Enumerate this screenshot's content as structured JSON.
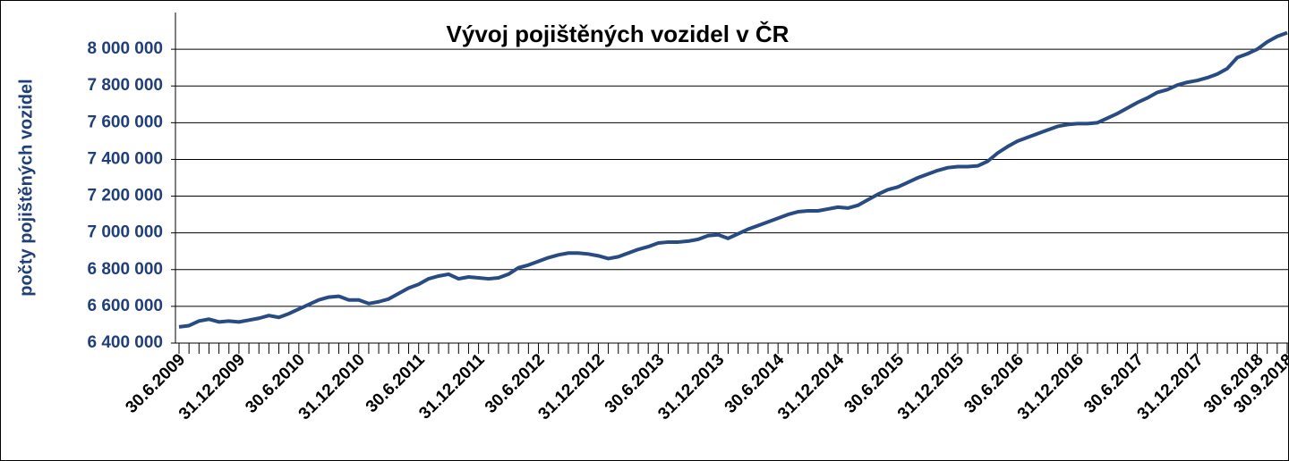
{
  "chart_data": {
    "type": "line",
    "title": "Vývoj pojištěných vozidel v ČR",
    "y_label": "počty pojištěných vozidel",
    "categories": [
      "30.6.2009",
      null,
      null,
      null,
      null,
      null,
      "31.12.2009",
      null,
      null,
      null,
      null,
      null,
      "30.6.2010",
      null,
      null,
      null,
      null,
      null,
      "31.12.2010",
      null,
      null,
      null,
      null,
      null,
      "30.6.2011",
      null,
      null,
      null,
      null,
      null,
      "31.12.2011",
      null,
      null,
      null,
      null,
      null,
      "30.6.2012",
      null,
      null,
      null,
      null,
      null,
      "31.12.2012",
      null,
      null,
      null,
      null,
      null,
      "30.6.2013",
      null,
      null,
      null,
      null,
      null,
      "31.12.2013",
      null,
      null,
      null,
      null,
      null,
      "30.6.2014",
      null,
      null,
      null,
      null,
      null,
      "31.12.2014",
      null,
      null,
      null,
      null,
      null,
      "30.6.2015",
      null,
      null,
      null,
      null,
      null,
      "31.12.2015",
      null,
      null,
      null,
      null,
      null,
      "30.6.2016",
      null,
      null,
      null,
      null,
      null,
      "31.12.2016",
      null,
      null,
      null,
      null,
      null,
      "30.6.2017",
      null,
      null,
      null,
      null,
      null,
      "31.12.2017",
      null,
      null,
      null,
      null,
      null,
      "30.6.2018",
      null,
      null,
      "30.9.2018"
    ],
    "series": [
      {
        "name": "počty pojištěných vozidel",
        "color": "#284c82",
        "values": [
          6488000,
          6495000,
          6520000,
          6530000,
          6515000,
          6520000,
          6515000,
          6525000,
          6535000,
          6550000,
          6540000,
          6560000,
          6585000,
          6610000,
          6635000,
          6650000,
          6655000,
          6635000,
          6635000,
          6615000,
          6625000,
          6640000,
          6670000,
          6700000,
          6720000,
          6750000,
          6765000,
          6775000,
          6750000,
          6760000,
          6755000,
          6750000,
          6755000,
          6775000,
          6810000,
          6825000,
          6845000,
          6865000,
          6880000,
          6890000,
          6890000,
          6885000,
          6875000,
          6860000,
          6870000,
          6890000,
          6910000,
          6925000,
          6945000,
          6950000,
          6950000,
          6955000,
          6965000,
          6985000,
          6990000,
          6970000,
          6995000,
          7020000,
          7040000,
          7060000,
          7080000,
          7100000,
          7115000,
          7120000,
          7120000,
          7130000,
          7140000,
          7135000,
          7150000,
          7180000,
          7210000,
          7235000,
          7250000,
          7275000,
          7300000,
          7320000,
          7340000,
          7355000,
          7361000,
          7361000,
          7365000,
          7390000,
          7435000,
          7470000,
          7500000,
          7520000,
          7540000,
          7560000,
          7580000,
          7590000,
          7595000,
          7595000,
          7600000,
          7625000,
          7650000,
          7680000,
          7710000,
          7735000,
          7765000,
          7780000,
          7805000,
          7820000,
          7830000,
          7845000,
          7865000,
          7895000,
          7955000,
          7975000,
          8000000,
          8040000,
          8070000,
          8090000
        ]
      }
    ],
    "ylim": [
      6400000,
      8200000
    ],
    "yticks": [
      {
        "value": 6400000,
        "label": "6 400 000"
      },
      {
        "value": 6600000,
        "label": "6 600 000"
      },
      {
        "value": 6800000,
        "label": "6 800 000"
      },
      {
        "value": 7000000,
        "label": "7 000 000"
      },
      {
        "value": 7200000,
        "label": "7 200 000"
      },
      {
        "value": 7400000,
        "label": "7 400 000"
      },
      {
        "value": 7600000,
        "label": "7 600 000"
      },
      {
        "value": 7800000,
        "label": "7 800 000"
      },
      {
        "value": 8000000,
        "label": "8 000 000"
      }
    ],
    "grid": true
  }
}
